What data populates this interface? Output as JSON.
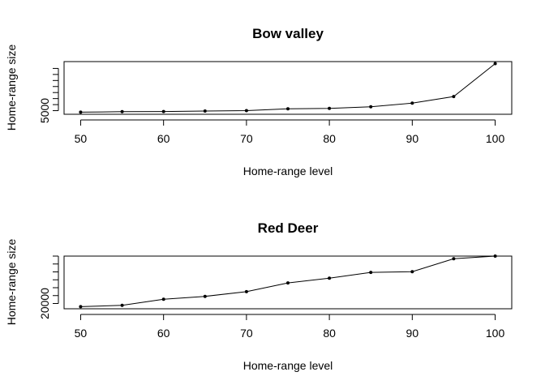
{
  "chart_data": [
    {
      "type": "line",
      "title": "Bow valley",
      "xlabel": "Home-range level",
      "ylabel": "Home-range size",
      "xlim": [
        48,
        102
      ],
      "ylim": [
        4100,
        17200
      ],
      "x": [
        50,
        55,
        60,
        65,
        70,
        75,
        80,
        85,
        90,
        95,
        100
      ],
      "series": [
        {
          "values": [
            4630,
            4750,
            4780,
            4900,
            5000,
            5450,
            5580,
            5960,
            6870,
            8520,
            16700
          ]
        }
      ],
      "x_ticks": [
        50,
        60,
        70,
        80,
        90,
        100
      ],
      "y_tick_values": [
        5000,
        6500,
        8000,
        9500,
        11000,
        12500,
        14000,
        15500
      ],
      "y_tick_labels": [
        "5000"
      ],
      "grid": false
    },
    {
      "type": "line",
      "title": "Red Deer",
      "xlabel": "Home-range level",
      "ylabel": "Home-range size",
      "xlim": [
        48,
        102
      ],
      "ylim": [
        18000,
        38000
      ],
      "x": [
        50,
        55,
        60,
        65,
        70,
        75,
        80,
        85,
        90,
        95,
        100
      ],
      "series": [
        {
          "values": [
            18800,
            19300,
            21600,
            22700,
            24500,
            27800,
            29600,
            31800,
            32100,
            37000,
            38000
          ]
        }
      ],
      "x_ticks": [
        50,
        60,
        70,
        80,
        90,
        100
      ],
      "y_tick_values": [
        20000,
        23000,
        26000,
        29000,
        32000,
        35000,
        38000
      ],
      "y_tick_labels": [
        "20000"
      ],
      "grid": false
    }
  ]
}
